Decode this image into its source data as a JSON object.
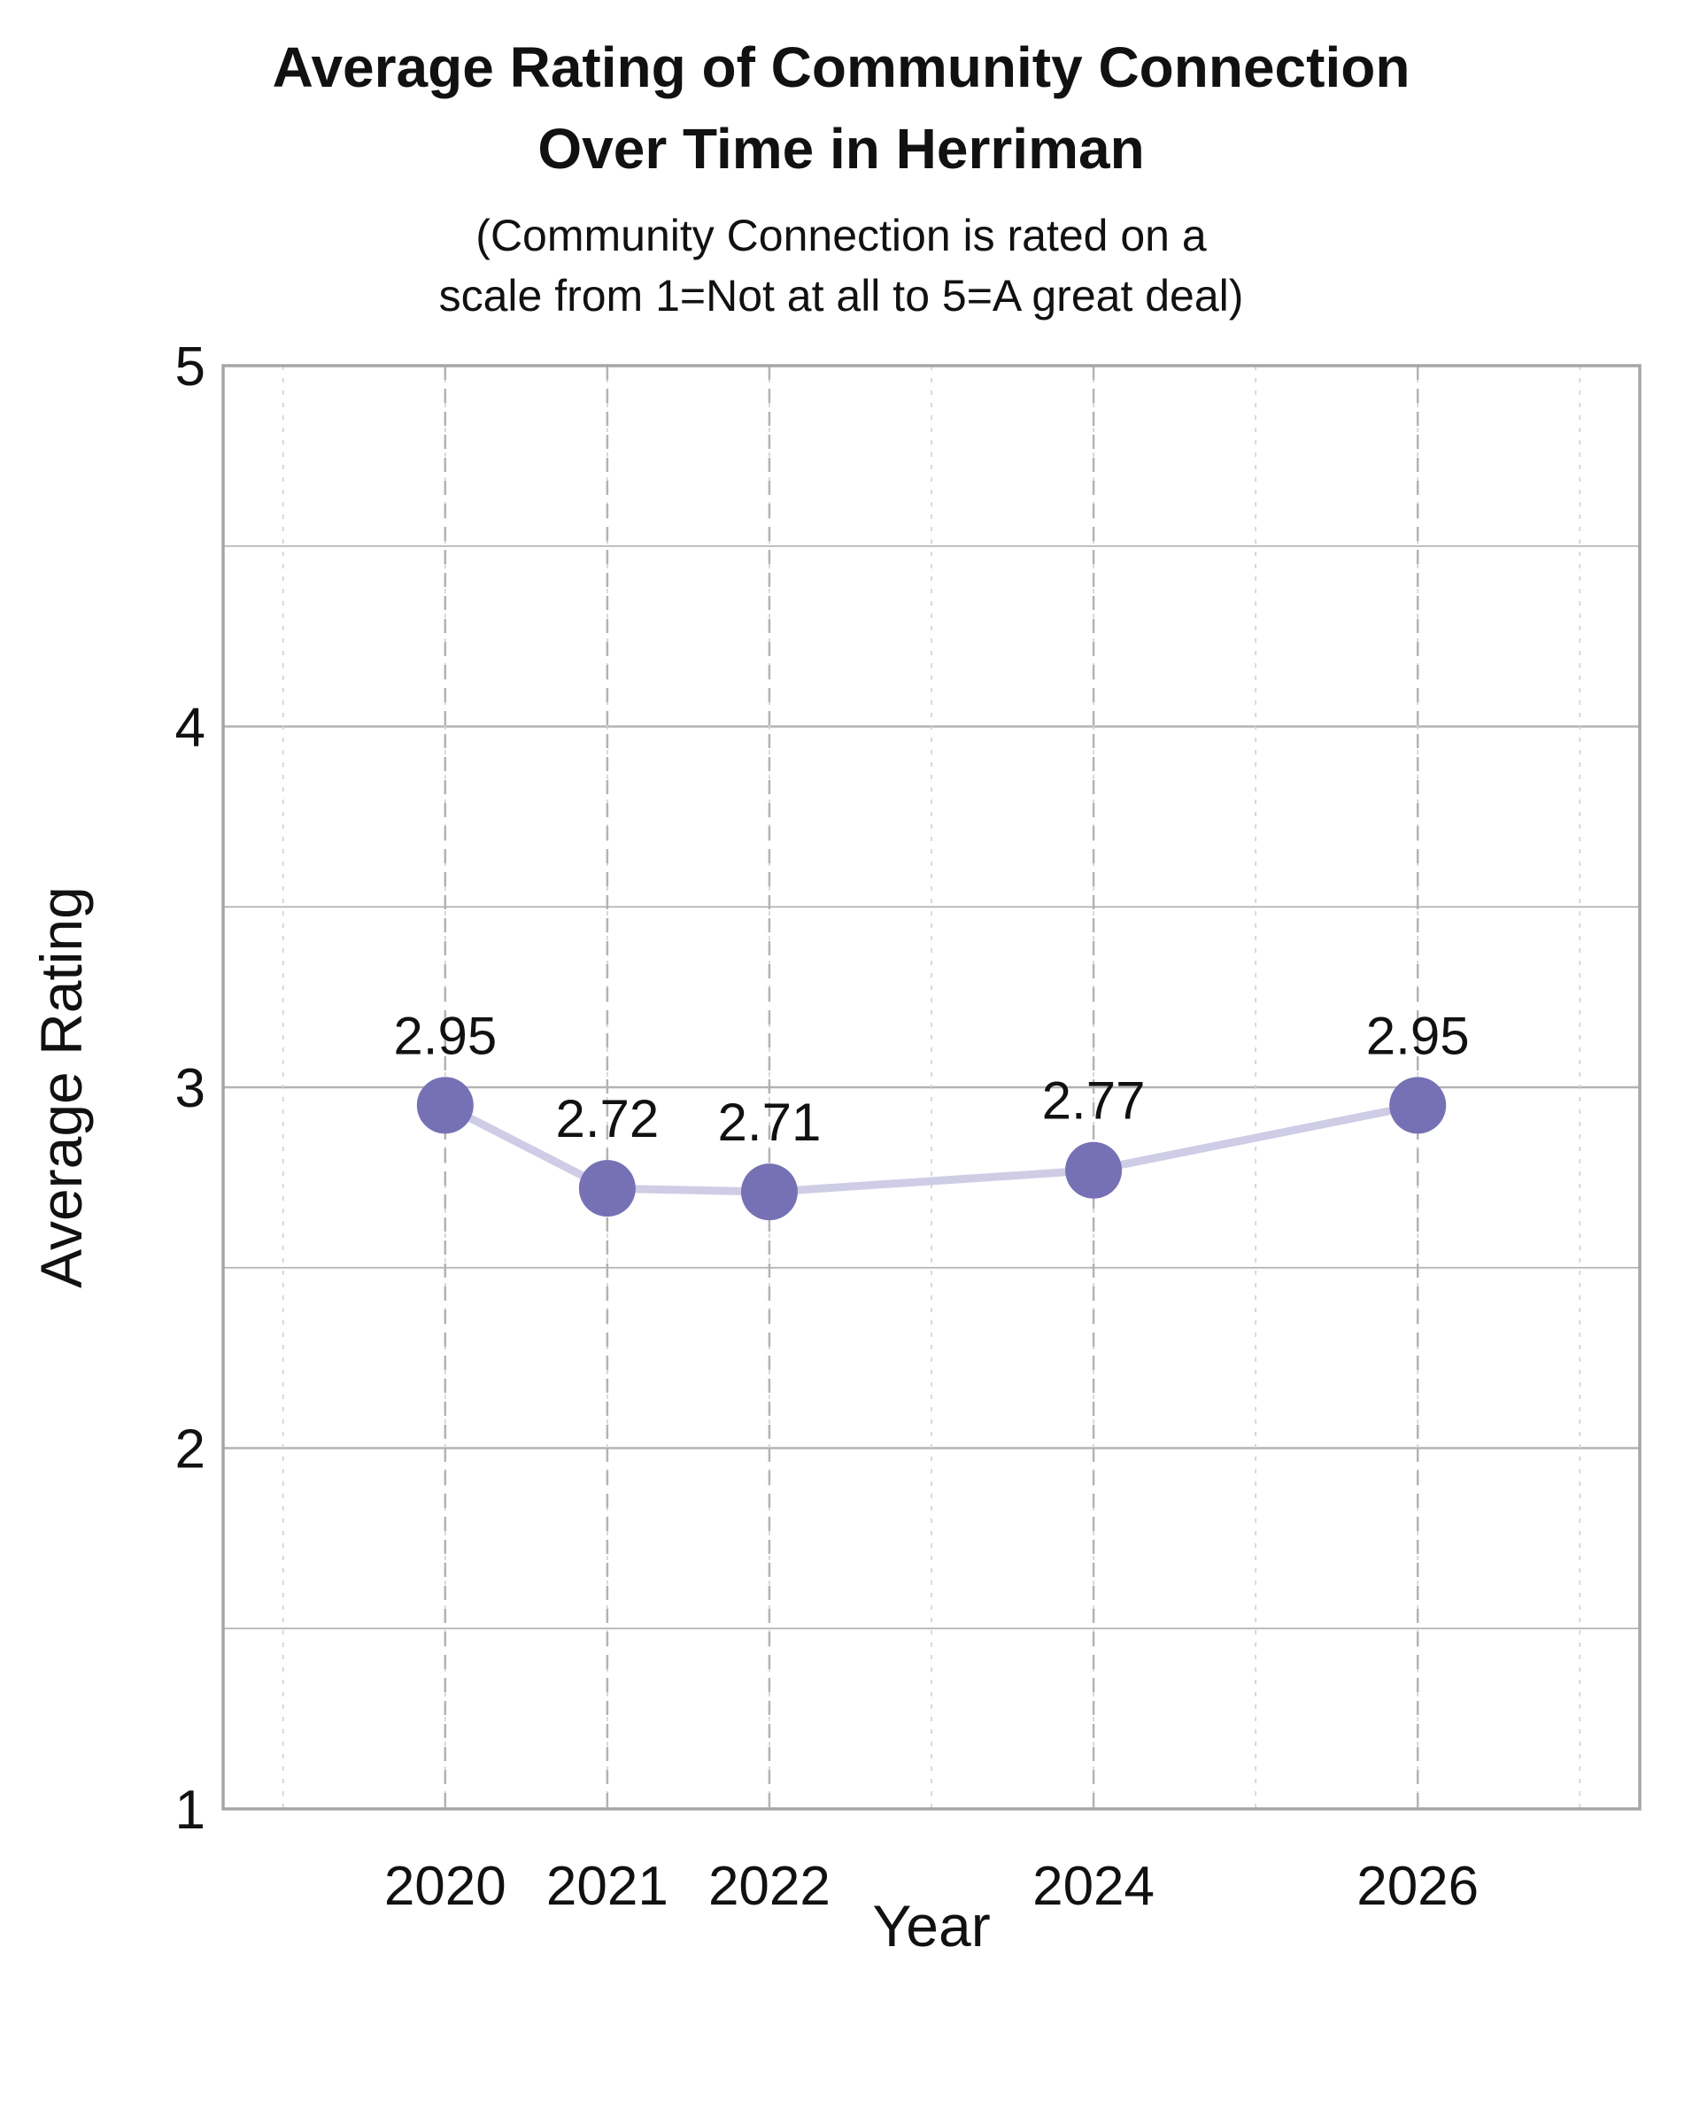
{
  "chart_data": {
    "type": "line",
    "title": [
      "Average Rating of Community Connection",
      "Over Time in Herriman"
    ],
    "subtitle": [
      "(Community Connection is rated on a",
      "scale from 1=Not at all to 5=A great deal)"
    ],
    "xlabel": "Year",
    "ylabel": "Average Rating",
    "x": [
      2020,
      2021,
      2022,
      2024,
      2026
    ],
    "y": [
      2.95,
      2.72,
      2.71,
      2.77,
      2.95
    ],
    "data_labels": [
      "2.95",
      "2.72",
      "2.71",
      "2.77",
      "2.95"
    ],
    "xticks": [
      "2020",
      "2021",
      "2022",
      "2024",
      "2026"
    ],
    "yticks": [
      "1",
      "2",
      "3",
      "4",
      "5"
    ],
    "xlim": [
      2018.63,
      2027.37
    ],
    "ylim": [
      1,
      5
    ],
    "grid": true,
    "colors": {
      "marker": "#7671b4",
      "line": "#cfcce6",
      "grid": "#b3b3b3",
      "axis": "#a6a6a6"
    }
  }
}
